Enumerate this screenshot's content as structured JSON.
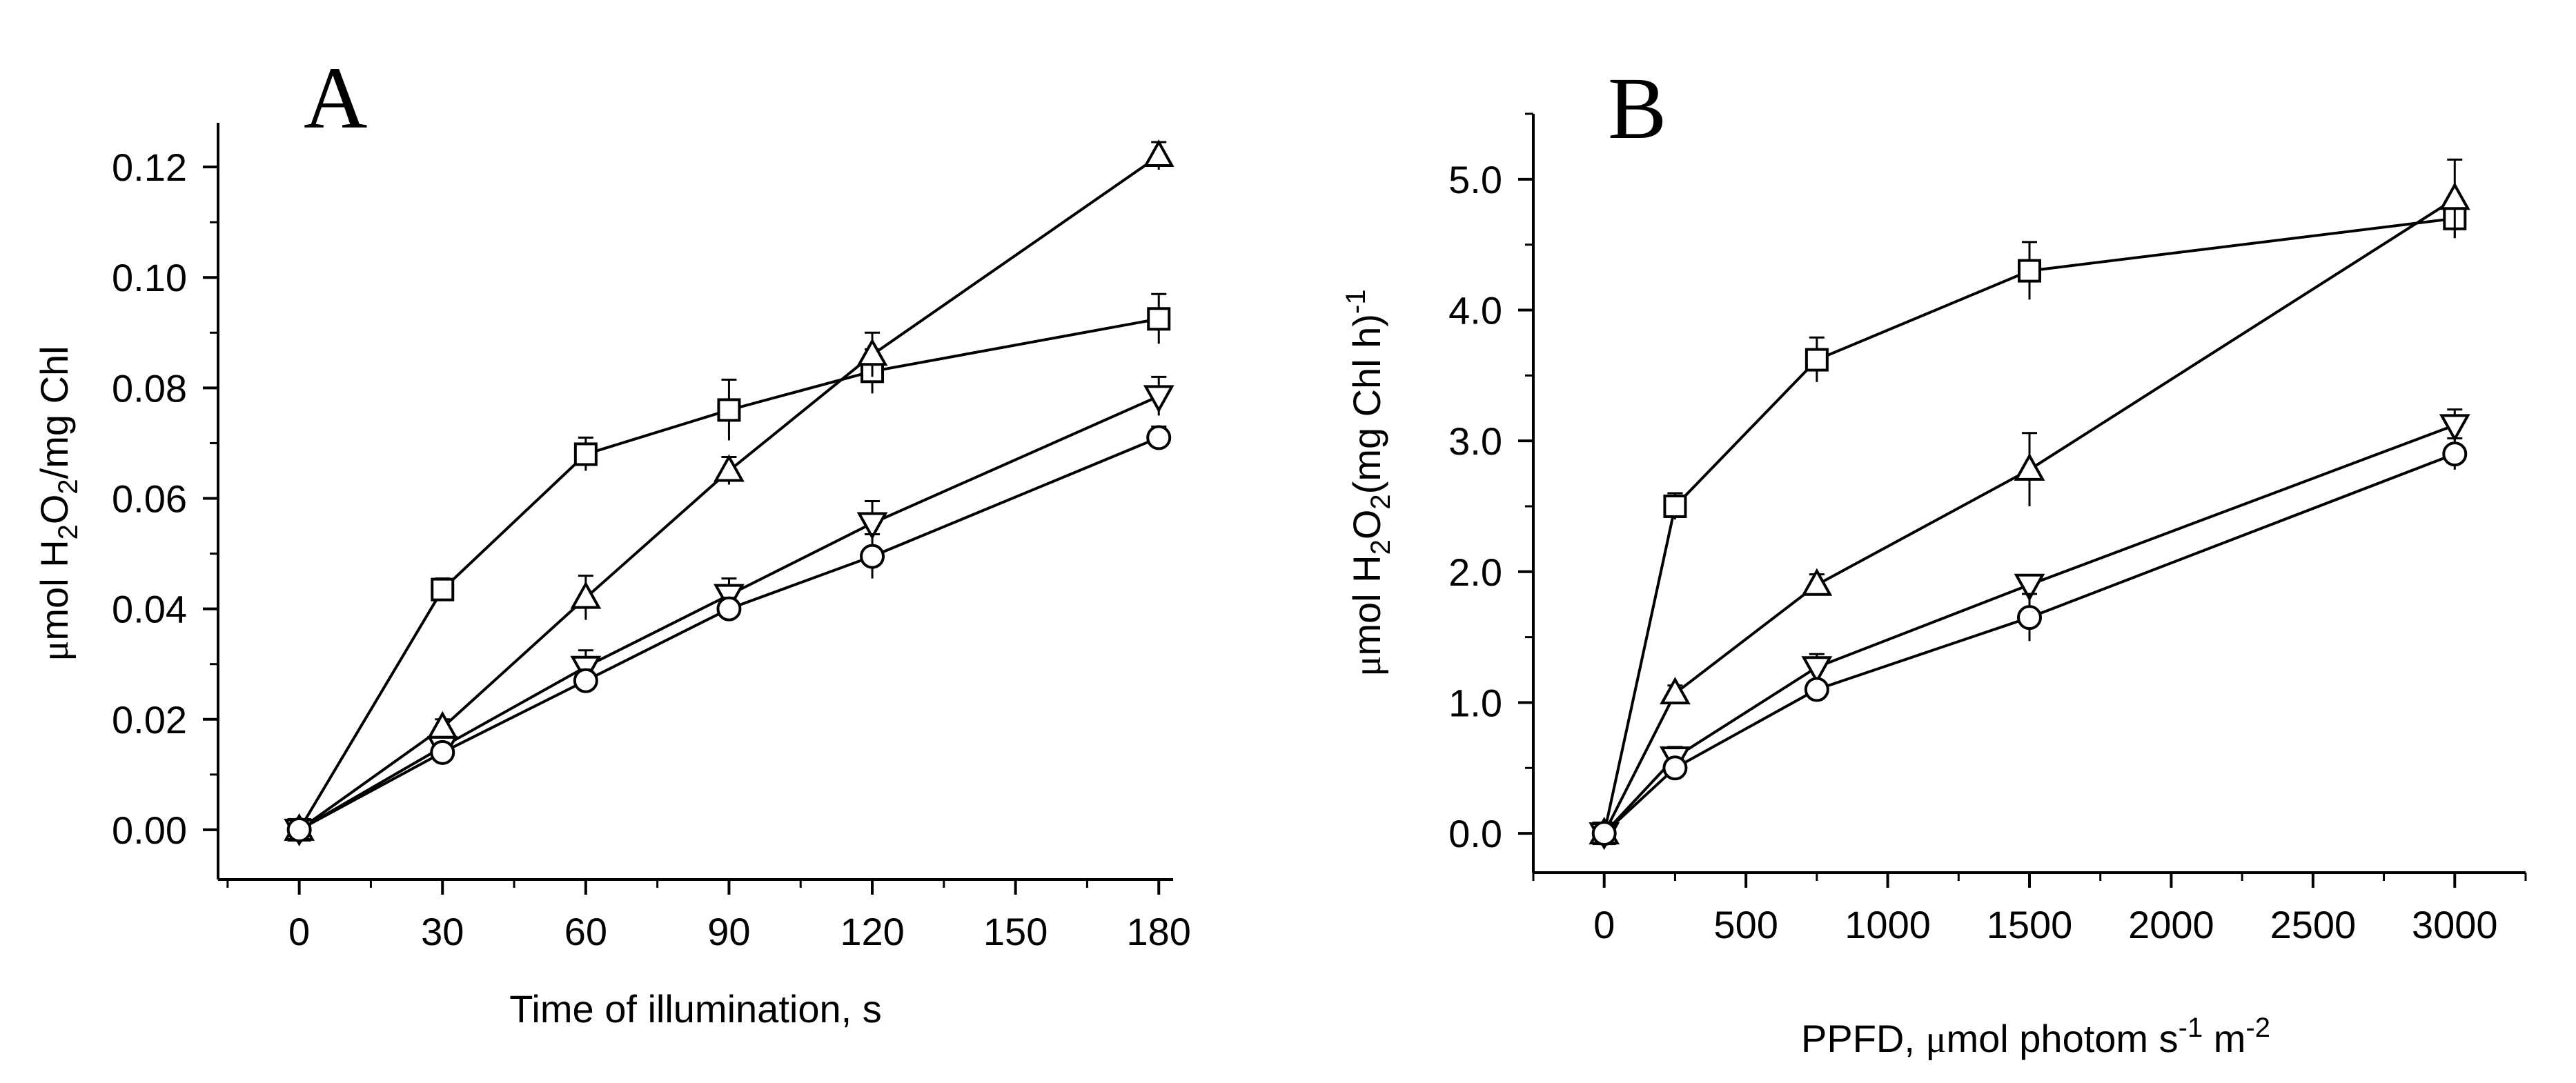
{
  "chart_data": [
    {
      "type": "line",
      "panel_label": "A",
      "xlabel": "Time of illumination, s",
      "ylabel": {
        "prefix": "μ",
        "main": "mol H",
        "sub": "2",
        "mid": "O",
        "sub2": "2",
        "suffix": "/mg Chl"
      },
      "xlim": [
        -17,
        183
      ],
      "ylim": [
        -0.009,
        0.128
      ],
      "xticks": [
        0,
        30,
        60,
        90,
        120,
        150,
        180
      ],
      "xtick_labels": [
        "0",
        "30",
        "60",
        "90",
        "120",
        "150",
        "180"
      ],
      "yticks": [
        0.0,
        0.02,
        0.04,
        0.06,
        0.08,
        0.1,
        0.12
      ],
      "ytick_labels": [
        "0.00",
        "0.02",
        "0.04",
        "0.06",
        "0.08",
        "0.10",
        "0.12"
      ],
      "series": [
        {
          "name": "square",
          "marker": "square",
          "x": [
            0,
            30,
            60,
            90,
            120,
            180
          ],
          "y": [
            0.0,
            0.0435,
            0.068,
            0.076,
            0.083,
            0.0925
          ],
          "err": [
            0.001,
            0.002,
            0.003,
            0.0055,
            0.004,
            0.0045
          ]
        },
        {
          "name": "triangle-up",
          "marker": "triangle-up",
          "x": [
            0,
            30,
            60,
            90,
            120,
            180
          ],
          "y": [
            0.0,
            0.0185,
            0.042,
            0.065,
            0.086,
            0.122
          ],
          "err": [
            0.001,
            0.0015,
            0.004,
            0.0025,
            0.004,
            0.0025
          ]
        },
        {
          "name": "triangle-down",
          "marker": "triangle-down",
          "x": [
            0,
            30,
            60,
            90,
            120,
            180
          ],
          "y": [
            0.0,
            0.015,
            0.0295,
            0.0425,
            0.0555,
            0.0785
          ],
          "err": [
            0.001,
            0.0015,
            0.003,
            0.003,
            0.004,
            0.0035
          ]
        },
        {
          "name": "circle",
          "marker": "circle",
          "x": [
            0,
            30,
            60,
            90,
            120,
            180
          ],
          "y": [
            0.0,
            0.014,
            0.027,
            0.04,
            0.0495,
            0.071
          ],
          "err": [
            0.001,
            0.0015,
            0.002,
            0.002,
            0.004,
            0.002
          ]
        }
      ]
    },
    {
      "type": "line",
      "panel_label": "B",
      "xlabel": {
        "pre": "PPFD, ",
        "greek": "μ",
        "main": "mol photom s",
        "sup1": "-1",
        "mid": " m",
        "sup2": "-2"
      },
      "ylabel": {
        "prefix": "μ",
        "main": "mol H",
        "sub": "2",
        "mid": "O",
        "sub2": "2",
        "suffix": "(mg Chl h)",
        "sup": "-1"
      },
      "xlim": [
        -250,
        3250
      ],
      "ylim": [
        -0.3,
        5.5
      ],
      "xticks": [
        0,
        500,
        1000,
        1500,
        2000,
        2500,
        3000
      ],
      "xtick_labels": [
        "0",
        "500",
        "1000",
        "1500",
        "2000",
        "2500",
        "3000"
      ],
      "yticks": [
        0,
        1,
        2,
        3,
        4,
        5
      ],
      "ytick_labels": [
        "0.0",
        "1.0",
        "2.0",
        "3.0",
        "4.0",
        "5.0"
      ],
      "series": [
        {
          "name": "square",
          "marker": "square",
          "x": [
            0,
            250,
            750,
            1500,
            3000
          ],
          "y": [
            0.0,
            2.5,
            3.62,
            4.3,
            4.7
          ],
          "err": [
            0.04,
            0.1,
            0.17,
            0.22,
            0.15
          ]
        },
        {
          "name": "triangle-up",
          "marker": "triangle-up",
          "x": [
            0,
            250,
            750,
            1500,
            3000
          ],
          "y": [
            0.0,
            1.07,
            1.9,
            2.78,
            4.85
          ],
          "err": [
            0.04,
            0.06,
            0.08,
            0.28,
            0.3
          ]
        },
        {
          "name": "triangle-down",
          "marker": "triangle-down",
          "x": [
            0,
            250,
            750,
            1500,
            3000
          ],
          "y": [
            0.0,
            0.58,
            1.27,
            1.9,
            3.12
          ],
          "err": [
            0.04,
            0.08,
            0.1,
            0.07,
            0.12
          ]
        },
        {
          "name": "circle",
          "marker": "circle",
          "x": [
            0,
            250,
            750,
            1500,
            3000
          ],
          "y": [
            0.0,
            0.5,
            1.1,
            1.65,
            2.9
          ],
          "err": [
            0.04,
            0.06,
            0.06,
            0.18,
            0.12
          ]
        }
      ]
    }
  ]
}
